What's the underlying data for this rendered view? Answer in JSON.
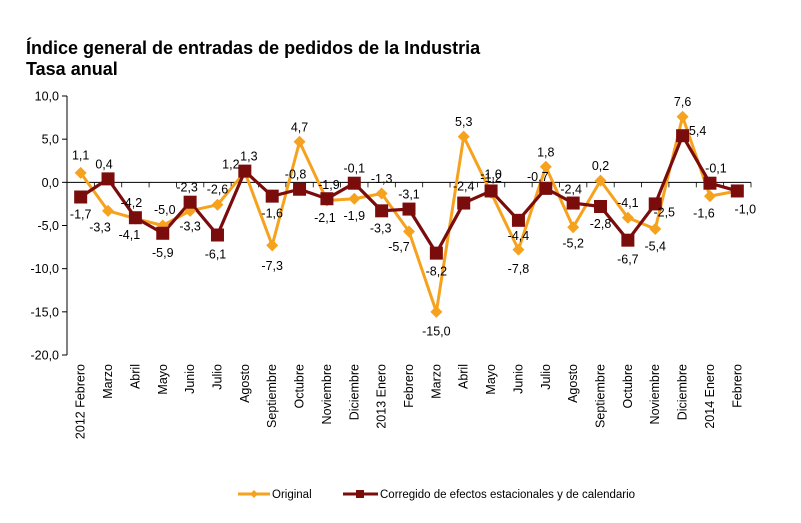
{
  "chart_data": {
    "type": "line",
    "title": "Índice general de entradas de pedidos de la Industria",
    "subtitle": "Tasa anual",
    "xlabel": "",
    "ylabel": "",
    "ylim": [
      -20,
      10
    ],
    "yticks": [
      10,
      5,
      0,
      -5,
      -10,
      -15,
      -20
    ],
    "ytick_labels": [
      "10,0",
      "5,0",
      "0,0",
      "-5,0",
      "-10,0",
      "-15,0",
      "-20,0"
    ],
    "grid": false,
    "legend_position": "bottom",
    "categories": [
      "2012 Febrero",
      "Marzo",
      "Abril",
      "Mayo",
      "Junio",
      "Julio",
      "Agosto",
      "Septiembre",
      "Octubre",
      "Noviembre",
      "Diciembre",
      "2013 Enero",
      "Febrero",
      "Marzo",
      "Abril",
      "Mayo",
      "Junio",
      "Julio",
      "Agosto",
      "Septiembre",
      "Octubre",
      "Noviembre",
      "Diciembre",
      "2014 Enero",
      "Febrero"
    ],
    "series": [
      {
        "name": "Original",
        "color": "#F6A21E",
        "marker": "diamond",
        "values": [
          1.1,
          -3.3,
          -4.2,
          -5.0,
          -3.3,
          -2.6,
          1.2,
          -7.3,
          4.7,
          -2.1,
          -1.9,
          -1.3,
          -5.7,
          -15.0,
          5.3,
          -1.2,
          -7.8,
          1.8,
          -5.2,
          0.2,
          -4.1,
          -5.4,
          7.6,
          -1.6,
          -1.0
        ],
        "labels": [
          "1,1",
          "-3,3",
          "-4,2",
          "-5,0",
          "-3,3",
          "-2,6",
          "1,2",
          "-7,3",
          "4,7",
          "-2,1",
          "-1,9",
          "-1,3",
          "-5,7",
          "-15,0",
          "5,3",
          "-1,2",
          "-7,8",
          "1,8",
          "-5,2",
          "0,2",
          "-4,1",
          "-5,4",
          "7,6",
          "-1,6",
          ""
        ]
      },
      {
        "name": "Corregido de efectos estacionales y de calendario",
        "color": "#7B0C0C",
        "marker": "square",
        "values": [
          -1.7,
          0.4,
          -4.1,
          -5.9,
          -2.3,
          -6.1,
          1.3,
          -1.6,
          -0.8,
          -1.9,
          -0.1,
          -3.3,
          -3.1,
          -8.2,
          -2.4,
          -1.0,
          -4.4,
          -0.7,
          -2.4,
          -2.8,
          -6.7,
          -2.5,
          5.4,
          -0.1,
          -1.0
        ],
        "labels": [
          "-1,7",
          "0,4",
          "-4,1",
          "-5,9",
          "-2,3",
          "-6,1",
          "1,3",
          "-1,6",
          "-0,8",
          "-1,9",
          "-0,1",
          "-3,3",
          "-3,1",
          "-8,2",
          "-2,4",
          "-1,0",
          "-4,4",
          "-0,7",
          "-2,4",
          "-2,8",
          "-6,7",
          "-2,5",
          "5,4",
          "-0,1",
          "-1,0"
        ]
      }
    ]
  }
}
